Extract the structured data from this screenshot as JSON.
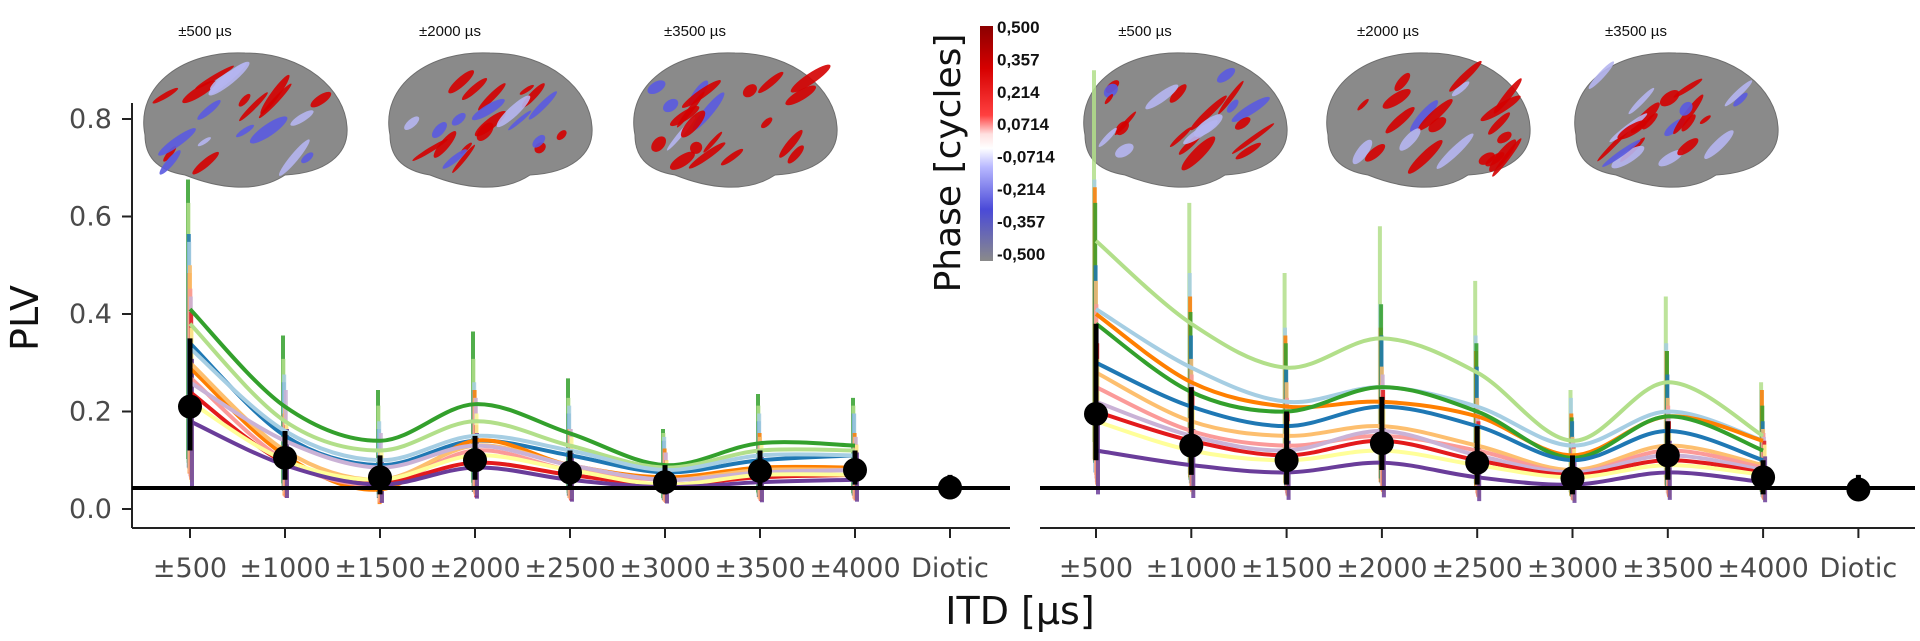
{
  "chart_data": {
    "type": "line",
    "ylabel": "PLV",
    "xlabel": "ITD [µs]",
    "ylim": [
      0,
      0.85
    ],
    "yticks": [
      "0.0",
      "0.2",
      "0.4",
      "0.6",
      "0.8"
    ],
    "yticks_values": [
      0,
      0.2,
      0.4,
      0.6,
      0.8
    ],
    "categories": [
      "±500",
      "±1000",
      "±1500",
      "±2000",
      "±2500",
      "±3000",
      "±3500",
      "±4000",
      "Diotic"
    ],
    "reference_line": 0.043,
    "colorbar": {
      "title": "Phase [cycles]",
      "ticks": [
        "0,500",
        "0,357",
        "0,214",
        "0,0714",
        "-0,0714",
        "-0,214",
        "-0,357",
        "-0,500"
      ],
      "colors": [
        "#8b0000",
        "#e00000",
        "#ff3030",
        "#ffd0d0",
        "#ffffff",
        "#9090ff",
        "#4040d0",
        "#909090"
      ]
    },
    "panels": [
      {
        "brain_labels": [
          "±500 µs",
          "±2000 µs",
          "±3500 µs"
        ],
        "mean": [
          0.21,
          0.105,
          0.065,
          0.1,
          0.075,
          0.055,
          0.078,
          0.08,
          0.044
        ],
        "mean_err": [
          [
            0.12,
            0.35
          ],
          [
            0.06,
            0.16
          ],
          [
            0.03,
            0.11
          ],
          [
            0.06,
            0.15
          ],
          [
            0.04,
            0.12
          ],
          [
            0.03,
            0.09
          ],
          [
            0.04,
            0.12
          ],
          [
            0.05,
            0.12
          ],
          [
            0.02,
            0.07
          ]
        ],
        "series": [
          {
            "name": "dark green",
            "color": "#33a02c",
            "values": [
              0.41,
              0.21,
              0.14,
              0.215,
              0.155,
              0.09,
              0.135,
              0.13
            ]
          },
          {
            "name": "light green",
            "color": "#b2df8a",
            "values": [
              0.38,
              0.18,
              0.12,
              0.18,
              0.13,
              0.085,
              0.12,
              0.12
            ]
          },
          {
            "name": "dark blue",
            "color": "#1f78b4",
            "values": [
              0.34,
              0.15,
              0.09,
              0.14,
              0.11,
              0.075,
              0.1,
              0.11
            ]
          },
          {
            "name": "light blue",
            "color": "#a6cee3",
            "values": [
              0.33,
              0.16,
              0.1,
              0.15,
              0.12,
              0.08,
              0.11,
              0.11
            ]
          },
          {
            "name": "orange",
            "color": "#ff7f00",
            "values": [
              0.29,
              0.11,
              0.04,
              0.14,
              0.09,
              0.065,
              0.085,
              0.085
            ]
          },
          {
            "name": "light orange",
            "color": "#fdbf6f",
            "values": [
              0.3,
              0.12,
              0.06,
              0.13,
              0.09,
              0.06,
              0.08,
              0.08
            ]
          },
          {
            "name": "pink",
            "color": "#fb9a99",
            "values": [
              0.27,
              0.1,
              0.05,
              0.12,
              0.08,
              0.06,
              0.07,
              0.07
            ]
          },
          {
            "name": "lavender",
            "color": "#cab2d6",
            "values": [
              0.26,
              0.14,
              0.085,
              0.13,
              0.09,
              0.06,
              0.075,
              0.08
            ]
          },
          {
            "name": "red",
            "color": "#e31a1c",
            "values": [
              0.24,
              0.095,
              0.055,
              0.095,
              0.07,
              0.05,
              0.065,
              0.07
            ]
          },
          {
            "name": "yellow",
            "color": "#ffff99",
            "values": [
              0.22,
              0.1,
              0.06,
              0.11,
              0.08,
              0.05,
              0.07,
              0.07
            ]
          },
          {
            "name": "purple",
            "color": "#6a3d9a",
            "values": [
              0.18,
              0.09,
              0.05,
              0.085,
              0.06,
              0.045,
              0.055,
              0.06
            ]
          }
        ]
      },
      {
        "brain_labels": [
          "±500 µs",
          "±2000 µs",
          "±3500 µs"
        ],
        "mean": [
          0.195,
          0.13,
          0.1,
          0.135,
          0.095,
          0.063,
          0.11,
          0.065,
          0.04
        ],
        "mean_err": [
          [
            0.1,
            0.38
          ],
          [
            0.07,
            0.25
          ],
          [
            0.05,
            0.2
          ],
          [
            0.08,
            0.23
          ],
          [
            0.05,
            0.17
          ],
          [
            0.03,
            0.11
          ],
          [
            0.06,
            0.18
          ],
          [
            0.03,
            0.1
          ],
          [
            0.02,
            0.07
          ]
        ],
        "series": [
          {
            "name": "light green",
            "color": "#b2df8a",
            "values": [
              0.55,
              0.38,
              0.29,
              0.35,
              0.28,
              0.14,
              0.26,
              0.15
            ]
          },
          {
            "name": "light blue",
            "color": "#a6cee3",
            "values": [
              0.41,
              0.29,
              0.22,
              0.25,
              0.21,
              0.13,
              0.2,
              0.14
            ]
          },
          {
            "name": "orange",
            "color": "#ff7f00",
            "values": [
              0.4,
              0.26,
              0.21,
              0.22,
              0.19,
              0.11,
              0.19,
              0.14
            ]
          },
          {
            "name": "dark green",
            "color": "#33a02c",
            "values": [
              0.38,
              0.24,
              0.2,
              0.25,
              0.2,
              0.105,
              0.19,
              0.12
            ]
          },
          {
            "name": "dark blue",
            "color": "#1f78b4",
            "values": [
              0.3,
              0.21,
              0.17,
              0.21,
              0.17,
              0.1,
              0.16,
              0.1
            ]
          },
          {
            "name": "light orange",
            "color": "#fdbf6f",
            "values": [
              0.28,
              0.18,
              0.15,
              0.17,
              0.13,
              0.08,
              0.13,
              0.09
            ]
          },
          {
            "name": "pink",
            "color": "#fb9a99",
            "values": [
              0.25,
              0.16,
              0.13,
              0.15,
              0.12,
              0.075,
              0.12,
              0.085
            ]
          },
          {
            "name": "lavender",
            "color": "#cab2d6",
            "values": [
              0.22,
              0.15,
              0.12,
              0.16,
              0.11,
              0.075,
              0.11,
              0.08
            ]
          },
          {
            "name": "red",
            "color": "#e31a1c",
            "values": [
              0.2,
              0.14,
              0.11,
              0.14,
              0.1,
              0.07,
              0.1,
              0.075
            ]
          },
          {
            "name": "yellow",
            "color": "#ffff99",
            "values": [
              0.18,
              0.12,
              0.1,
              0.12,
              0.09,
              0.065,
              0.09,
              0.07
            ]
          },
          {
            "name": "purple",
            "color": "#6a3d9a",
            "values": [
              0.12,
              0.09,
              0.075,
              0.095,
              0.065,
              0.05,
              0.075,
              0.055
            ]
          }
        ]
      }
    ]
  }
}
